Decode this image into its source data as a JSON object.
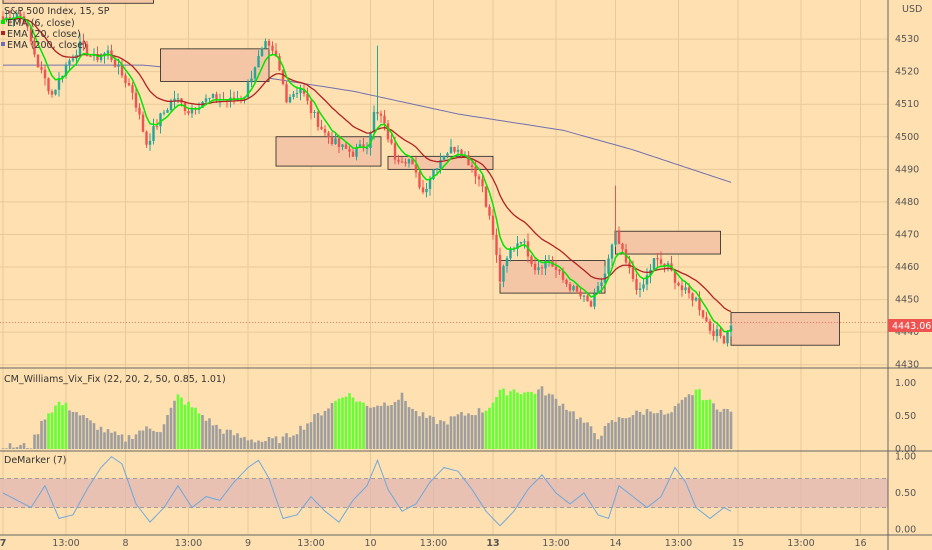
{
  "chart_data": {
    "type": "candlestick",
    "title": "S&P 500 Index, 15, SP",
    "currency": "USD",
    "last_price": "4443.06",
    "colors": {
      "background": "#ffe0b0",
      "bull": "#26a69a",
      "bear": "#ef5350",
      "ema6": "#00e600",
      "ema20": "#b22222",
      "ema200": "#7070b0",
      "box_fill": "#f5c6a6",
      "vix_green": "#66ff33",
      "vix_gray": "#9e9e9e",
      "demarker": "#6fa8dc",
      "demarker_band": "#e0b4b4",
      "price_tag": "#ef5350"
    },
    "legend": [
      {
        "label": "EMA (6, close)",
        "color": "#00e600"
      },
      {
        "label": "EMA (20, close)",
        "color": "#b22222"
      },
      {
        "label": "EMA (200, close)",
        "color": "#7070b0"
      }
    ],
    "price_axis": {
      "ticks": [
        4430,
        4440,
        4450,
        4460,
        4470,
        4480,
        4490,
        4500,
        4510,
        4520,
        4530
      ],
      "ylim": [
        4429,
        4542
      ]
    },
    "x_axis": {
      "labels": [
        {
          "t": 0,
          "text": "7",
          "bold": true
        },
        {
          "t": 18,
          "text": "13:00"
        },
        {
          "t": 35,
          "text": "8"
        },
        {
          "t": 53,
          "text": "13:00"
        },
        {
          "t": 70,
          "text": "9"
        },
        {
          "t": 88,
          "text": "13:00"
        },
        {
          "t": 105,
          "text": "10"
        },
        {
          "t": 123,
          "text": "13:00"
        },
        {
          "t": 140,
          "text": "13",
          "bold": true
        },
        {
          "t": 158,
          "text": "13:00"
        },
        {
          "t": 175,
          "text": "14"
        },
        {
          "t": 193,
          "text": "13:00"
        },
        {
          "t": 210,
          "text": "15"
        },
        {
          "t": 228,
          "text": "13:00"
        },
        {
          "t": 245,
          "text": "16"
        }
      ]
    },
    "price_line_anchors": [
      [
        0,
        4536
      ],
      [
        4,
        4538
      ],
      [
        6,
        4536
      ],
      [
        10,
        4522
      ],
      [
        14,
        4513
      ],
      [
        18,
        4522
      ],
      [
        22,
        4528
      ],
      [
        26,
        4524
      ],
      [
        30,
        4526
      ],
      [
        34,
        4519
      ],
      [
        37,
        4514
      ],
      [
        41,
        4498
      ],
      [
        45,
        4506
      ],
      [
        49,
        4512
      ],
      [
        53,
        4508
      ],
      [
        57,
        4511
      ],
      [
        61,
        4512
      ],
      [
        65,
        4511
      ],
      [
        69,
        4513
      ],
      [
        72,
        4522
      ],
      [
        75,
        4528
      ],
      [
        78,
        4524
      ],
      [
        81,
        4512
      ],
      [
        85,
        4515
      ],
      [
        88,
        4508
      ],
      [
        92,
        4501
      ],
      [
        96,
        4497
      ],
      [
        100,
        4495
      ],
      [
        104,
        4498
      ],
      [
        106,
        4507
      ],
      [
        108,
        4506
      ],
      [
        112,
        4494
      ],
      [
        116,
        4493
      ],
      [
        120,
        4483
      ],
      [
        123,
        4490
      ],
      [
        126,
        4495
      ],
      [
        130,
        4497
      ],
      [
        134,
        4491
      ],
      [
        137,
        4485
      ],
      [
        140,
        4470
      ],
      [
        142,
        4456
      ],
      [
        145,
        4465
      ],
      [
        148,
        4469
      ],
      [
        152,
        4460
      ],
      [
        156,
        4462
      ],
      [
        160,
        4456
      ],
      [
        164,
        4452
      ],
      [
        168,
        4448
      ],
      [
        172,
        4458
      ],
      [
        175,
        4470
      ],
      [
        178,
        4461
      ],
      [
        182,
        4452
      ],
      [
        186,
        4462
      ],
      [
        190,
        4460
      ],
      [
        194,
        4453
      ],
      [
        198,
        4450
      ],
      [
        202,
        4441
      ],
      [
        206,
        4438
      ],
      [
        208,
        4443
      ]
    ],
    "ema200_anchors": [
      [
        0,
        4522
      ],
      [
        40,
        4522
      ],
      [
        70,
        4519
      ],
      [
        100,
        4514
      ],
      [
        130,
        4507
      ],
      [
        160,
        4502
      ],
      [
        180,
        4496
      ],
      [
        208,
        4486
      ]
    ],
    "boxes": [
      {
        "t0": 0,
        "t1": 43,
        "top": 4546,
        "bottom": 4541
      },
      {
        "t0": 45,
        "t1": 76,
        "top": 4527,
        "bottom": 4517
      },
      {
        "t0": 78,
        "t1": 108,
        "top": 4500,
        "bottom": 4491
      },
      {
        "t0": 110,
        "t1": 140,
        "top": 4494,
        "bottom": 4490
      },
      {
        "t0": 142,
        "t1": 172,
        "top": 4462,
        "bottom": 4452
      },
      {
        "t0": 175,
        "t1": 205,
        "top": 4471,
        "bottom": 4464
      },
      {
        "t0": 208,
        "t1": 239,
        "top": 4446,
        "bottom": 4436
      }
    ],
    "vix": {
      "title": "CM_Williams_Vix_Fix (22, 20, 2, 50, 0.85, 1.01)",
      "ticks": [
        0.0,
        0.5,
        1.0
      ],
      "ylim": [
        0,
        1.2
      ],
      "anchors": [
        [
          0,
          0.03
        ],
        [
          8,
          0.05
        ],
        [
          12,
          0.5
        ],
        [
          16,
          0.7
        ],
        [
          20,
          0.6
        ],
        [
          25,
          0.4
        ],
        [
          30,
          0.25
        ],
        [
          35,
          0.15
        ],
        [
          40,
          0.3
        ],
        [
          45,
          0.3
        ],
        [
          50,
          0.8
        ],
        [
          56,
          0.55
        ],
        [
          62,
          0.3
        ],
        [
          68,
          0.18
        ],
        [
          74,
          0.12
        ],
        [
          80,
          0.15
        ],
        [
          86,
          0.35
        ],
        [
          92,
          0.6
        ],
        [
          98,
          0.85
        ],
        [
          104,
          0.65
        ],
        [
          110,
          0.7
        ],
        [
          114,
          0.8
        ],
        [
          118,
          0.55
        ],
        [
          122,
          0.45
        ],
        [
          126,
          0.4
        ],
        [
          130,
          0.5
        ],
        [
          134,
          0.55
        ],
        [
          138,
          0.6
        ],
        [
          142,
          0.85
        ],
        [
          146,
          0.9
        ],
        [
          150,
          0.85
        ],
        [
          154,
          0.9
        ],
        [
          158,
          0.75
        ],
        [
          162,
          0.6
        ],
        [
          166,
          0.4
        ],
        [
          170,
          0.2
        ],
        [
          174,
          0.4
        ],
        [
          178,
          0.5
        ],
        [
          182,
          0.55
        ],
        [
          186,
          0.6
        ],
        [
          190,
          0.5
        ],
        [
          194,
          0.7
        ],
        [
          198,
          0.9
        ],
        [
          202,
          0.7
        ],
        [
          206,
          0.6
        ],
        [
          208,
          0.55
        ]
      ],
      "green_ranges": [
        [
          13,
          18
        ],
        [
          50,
          56
        ],
        [
          95,
          103
        ],
        [
          138,
          152
        ],
        [
          198,
          202
        ]
      ]
    },
    "demarker": {
      "title": "DeMarker (7)",
      "ticks": [
        0.0,
        0.5,
        1.0
      ],
      "band": [
        0.3,
        0.7
      ],
      "ylim": [
        -0.05,
        1.05
      ],
      "anchors": [
        [
          0,
          0.5
        ],
        [
          4,
          0.4
        ],
        [
          8,
          0.3
        ],
        [
          12,
          0.6
        ],
        [
          16,
          0.15
        ],
        [
          20,
          0.2
        ],
        [
          24,
          0.55
        ],
        [
          28,
          0.85
        ],
        [
          31,
          1.0
        ],
        [
          34,
          0.9
        ],
        [
          38,
          0.35
        ],
        [
          42,
          0.1
        ],
        [
          46,
          0.3
        ],
        [
          50,
          0.6
        ],
        [
          54,
          0.3
        ],
        [
          58,
          0.45
        ],
        [
          62,
          0.4
        ],
        [
          66,
          0.65
        ],
        [
          70,
          0.85
        ],
        [
          73,
          0.95
        ],
        [
          76,
          0.7
        ],
        [
          80,
          0.15
        ],
        [
          84,
          0.2
        ],
        [
          88,
          0.45
        ],
        [
          92,
          0.25
        ],
        [
          96,
          0.1
        ],
        [
          100,
          0.4
        ],
        [
          104,
          0.6
        ],
        [
          107,
          0.95
        ],
        [
          110,
          0.55
        ],
        [
          114,
          0.25
        ],
        [
          118,
          0.35
        ],
        [
          122,
          0.65
        ],
        [
          126,
          0.85
        ],
        [
          130,
          0.8
        ],
        [
          134,
          0.55
        ],
        [
          138,
          0.25
        ],
        [
          142,
          0.05
        ],
        [
          146,
          0.25
        ],
        [
          150,
          0.55
        ],
        [
          154,
          0.75
        ],
        [
          158,
          0.5
        ],
        [
          162,
          0.35
        ],
        [
          166,
          0.5
        ],
        [
          170,
          0.2
        ],
        [
          173,
          0.15
        ],
        [
          176,
          0.6
        ],
        [
          180,
          0.45
        ],
        [
          184,
          0.3
        ],
        [
          188,
          0.45
        ],
        [
          192,
          0.85
        ],
        [
          195,
          0.65
        ],
        [
          198,
          0.3
        ],
        [
          202,
          0.15
        ],
        [
          206,
          0.3
        ],
        [
          208,
          0.25
        ]
      ]
    }
  }
}
